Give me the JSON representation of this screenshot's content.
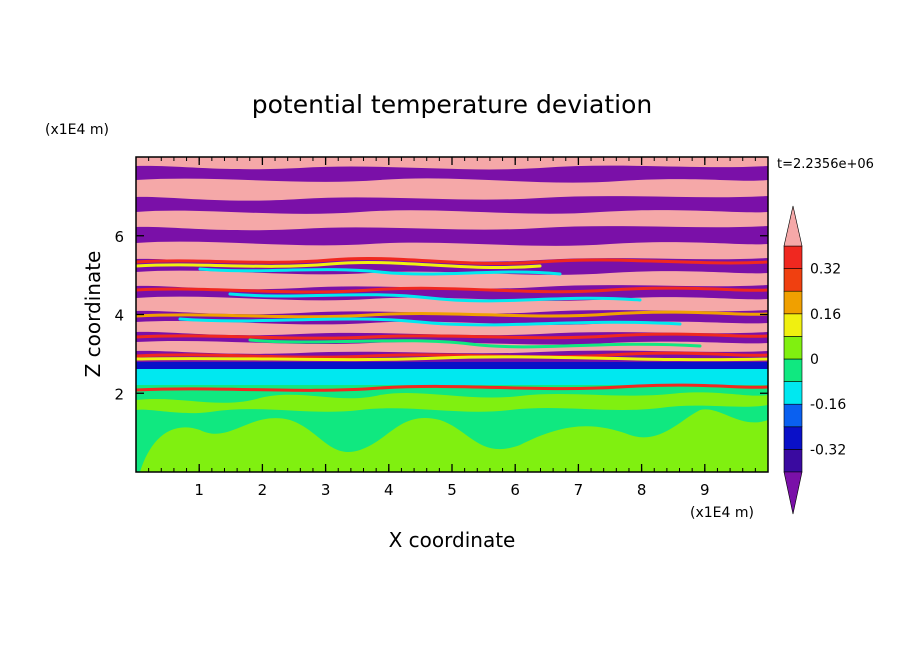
{
  "chart_data": {
    "type": "heatmap",
    "title": "potential temperature deviation",
    "xlabel": "X coordinate",
    "ylabel": "Z coordinate",
    "x_unit": "(x1E4 m)",
    "y_unit": "(x1E4 m)",
    "time_label": "t=2.2356e+06",
    "xlim": [
      0,
      10
    ],
    "ylim": [
      0,
      8
    ],
    "x_ticks": [
      1,
      2,
      3,
      4,
      5,
      6,
      7,
      8,
      9
    ],
    "y_ticks": [
      2,
      4,
      6
    ],
    "colorbar": {
      "levels": [
        -0.4,
        -0.32,
        -0.24,
        -0.16,
        -0.08,
        0,
        0.08,
        0.16,
        0.24,
        0.32,
        0.4
      ],
      "colors": [
        "#7a10a8",
        "#3a0aa0",
        "#0a10c8",
        "#0a60f0",
        "#00e8f0",
        "#10e880",
        "#80f010",
        "#f0f010",
        "#f0a000",
        "#f04010",
        "#f02820",
        "#f5a8a8"
      ],
      "labels": [
        "0.32",
        "0.16",
        "0",
        "-0.16",
        "-0.32"
      ],
      "extend": "both"
    },
    "grid": false,
    "legend_position": "right"
  }
}
